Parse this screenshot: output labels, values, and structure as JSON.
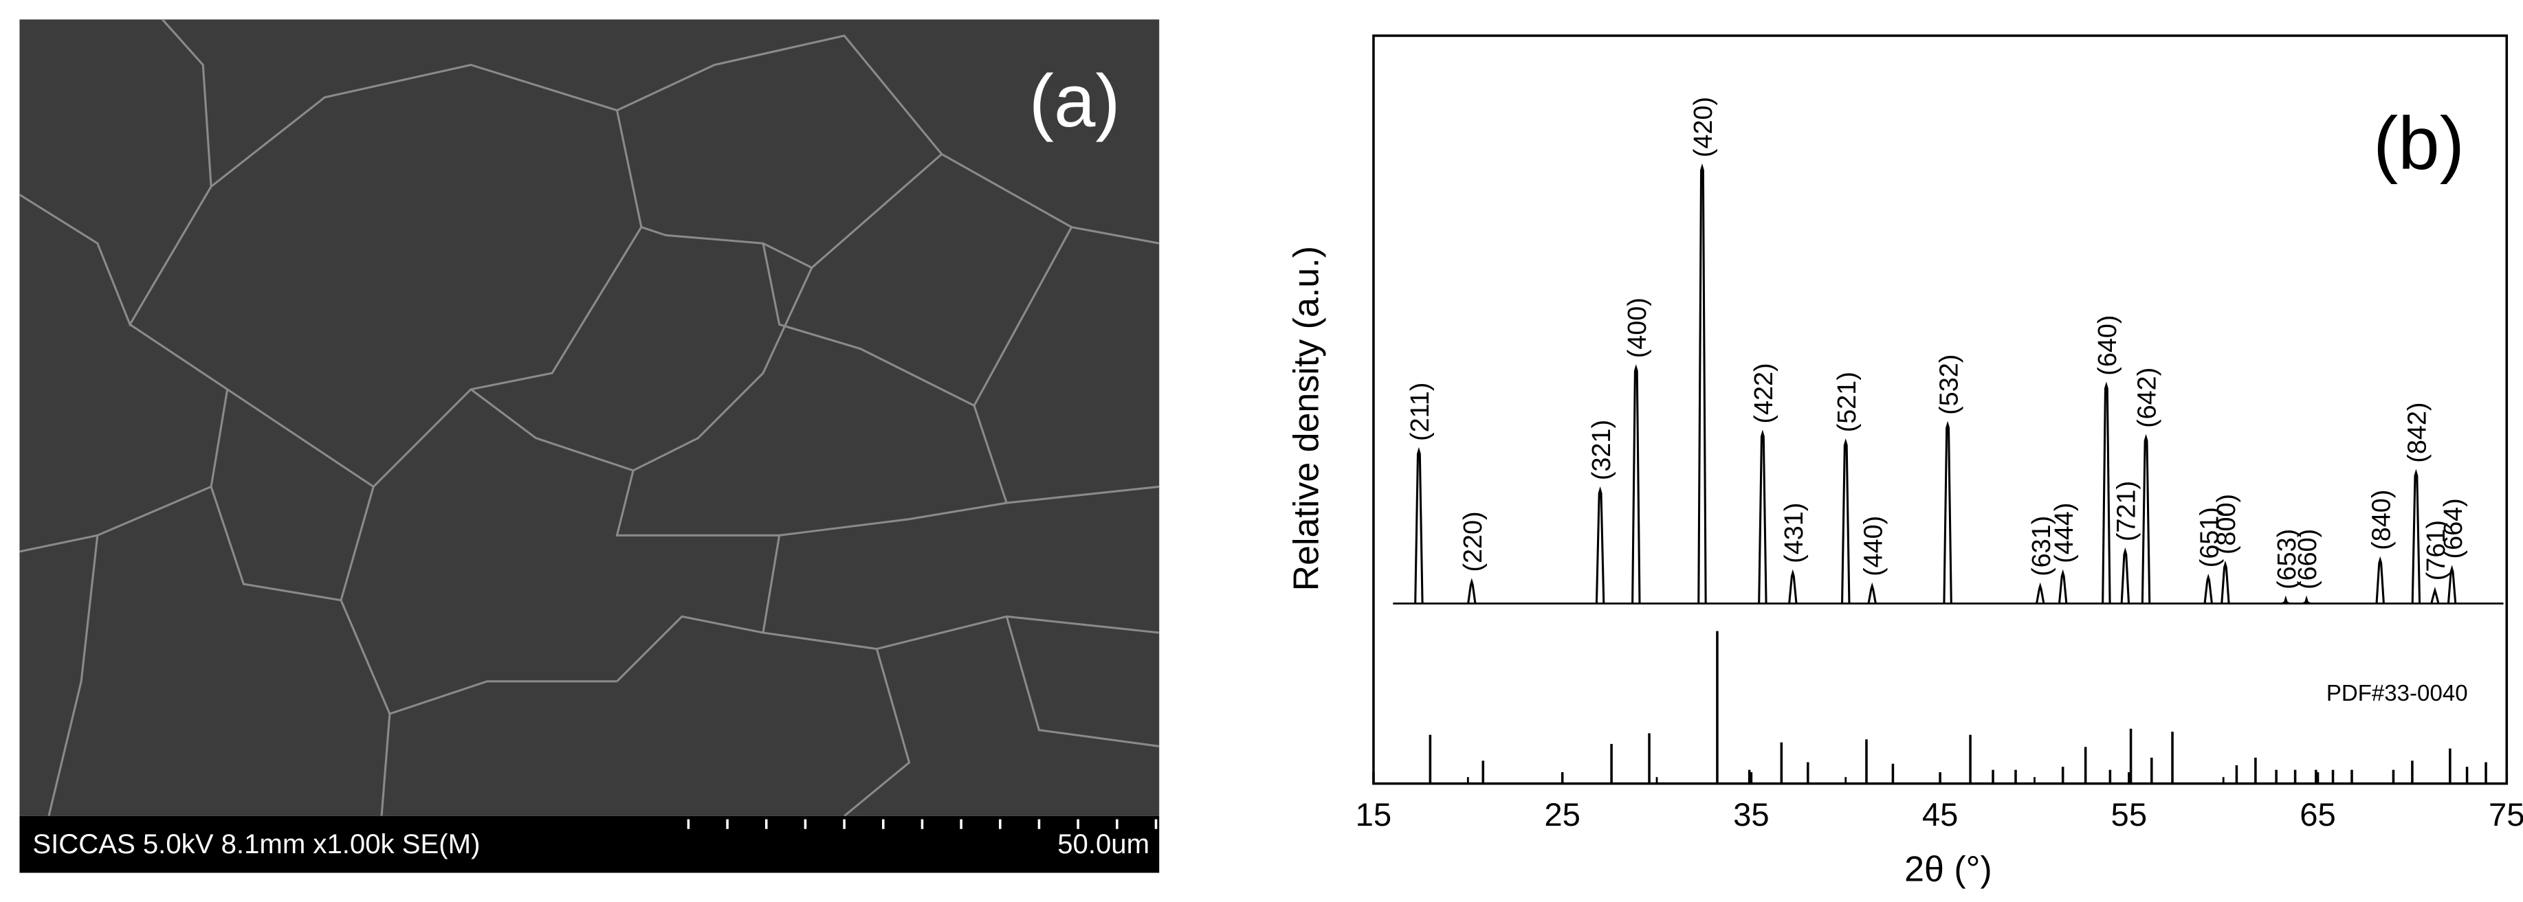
{
  "sem": {
    "panel": "(a)",
    "info": "SICCAS 5.0kV 8.1mm x1.00k SE(M)",
    "scale": "50.0um"
  },
  "chart_data": {
    "type": "xrd",
    "panel": "(b)",
    "xlabel": "2θ (°)",
    "ylabel": "Relative density (a.u.)",
    "xlim": [
      15,
      75
    ],
    "xticks": [
      15,
      25,
      35,
      45,
      55,
      65,
      75
    ],
    "ylim": [
      0,
      100
    ],
    "peaks": {
      "x": [
        17.4,
        20.2,
        27.0,
        28.9,
        32.4,
        35.6,
        37.2,
        40.0,
        41.4,
        45.4,
        50.3,
        51.5,
        53.8,
        54.8,
        55.9,
        59.2,
        60.1,
        63.3,
        64.4,
        68.3,
        70.2,
        71.2,
        72.1
      ],
      "labels": [
        "(211)",
        "(220)",
        "(321)",
        "(400)",
        "(420)",
        "(422)",
        "(431)",
        "(521)",
        "(440)",
        "(532)",
        "(631)",
        "(444)",
        "(640)",
        "(721)",
        "(642)",
        "(651)",
        "(800)",
        "(653)",
        "(660)",
        "(840)",
        "(842)",
        "(761)",
        "(664)"
      ],
      "values": [
        35,
        5,
        26,
        54,
        100,
        39,
        7,
        37,
        4,
        41,
        4,
        7,
        50,
        12,
        38,
        6,
        9,
        1,
        1,
        10,
        30,
        3,
        8
      ]
    },
    "reference": {
      "name": "PDF#33-0040",
      "ylim": [
        0,
        100
      ],
      "x": [
        18.0,
        20.8,
        27.6,
        29.6,
        33.2,
        34.9,
        36.6,
        38.0,
        41.1,
        42.5,
        46.6,
        47.8,
        49.0,
        51.5,
        52.7,
        54.0,
        55.1,
        56.2,
        57.3,
        60.7,
        61.7,
        62.8,
        63.8,
        64.9,
        65.8,
        66.8,
        69.0,
        70.0,
        72.0,
        72.9,
        73.9
      ],
      "values": [
        32,
        15,
        26,
        33,
        100,
        9,
        27,
        14,
        29,
        13,
        32,
        9,
        9,
        11,
        24,
        9,
        36,
        17,
        34,
        12,
        17,
        9,
        9,
        9,
        9,
        9,
        9,
        15,
        23,
        11,
        14
      ]
    }
  }
}
